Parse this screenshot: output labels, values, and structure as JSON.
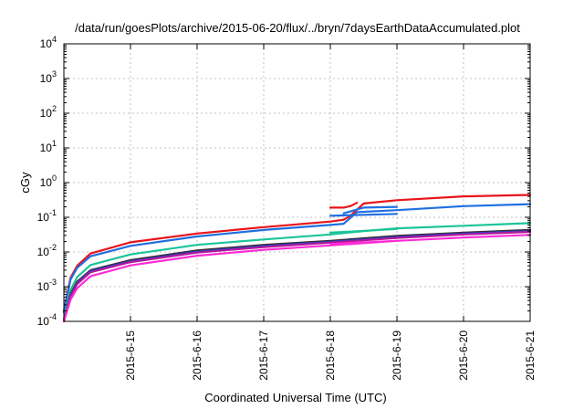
{
  "chart_data": {
    "type": "line",
    "title": "/data/run/goesPlots/archive/2015-06-20/flux/../bryn/7daysEarthDataAccumulated.plot",
    "xlabel": "Coordinated Universal Time (UTC)",
    "ylabel": "cGy",
    "yscale": "log",
    "ylim": [
      0.0001,
      10000
    ],
    "xlim": [
      "2015-06-14 00:00",
      "2015-06-21 00:00"
    ],
    "grid": true,
    "x_ticks": [
      "2015-6-15",
      "2015-6-16",
      "2015-6-17",
      "2015-6-18",
      "2015-6-19",
      "2015-6-20",
      "2015-6-21"
    ],
    "y_ticks": [
      {
        "value": 0.0001,
        "base": "10",
        "exp": "-4"
      },
      {
        "value": 0.001,
        "base": "10",
        "exp": "-3"
      },
      {
        "value": 0.01,
        "base": "10",
        "exp": "-2"
      },
      {
        "value": 0.1,
        "base": "10",
        "exp": "-1"
      },
      {
        "value": 1,
        "base": "10",
        "exp": "0"
      },
      {
        "value": 10,
        "base": "10",
        "exp": "1"
      },
      {
        "value": 100,
        "base": "10",
        "exp": "2"
      },
      {
        "value": 1000,
        "base": "10",
        "exp": "3"
      },
      {
        "value": 10000,
        "base": "10",
        "exp": "4"
      }
    ],
    "series": [
      {
        "color": "#e8141a",
        "points": [
          [
            "2015-06-14 00:00",
            0.0002
          ],
          [
            "2015-06-14 02:24",
            0.0018
          ],
          [
            "2015-06-14 04:48",
            0.004
          ],
          [
            "2015-06-14 09:36",
            0.009
          ],
          [
            "2015-06-15 00:00",
            0.019
          ],
          [
            "2015-06-16 00:00",
            0.034
          ],
          [
            "2015-06-17 00:00",
            0.052
          ],
          [
            "2015-06-18 00:00",
            0.075
          ],
          [
            "2015-06-18 04:48",
            0.085
          ],
          [
            "2015-06-18 07:12",
            0.11
          ],
          [
            "2015-06-18 12:00",
            0.25
          ],
          [
            "2015-06-19 00:00",
            0.31
          ],
          [
            "2015-06-20 00:00",
            0.4
          ],
          [
            "2015-06-21 00:00",
            0.44
          ]
        ]
      },
      {
        "color": "#e8141a",
        "points": [
          [
            "2015-06-18 00:00",
            0.19
          ],
          [
            "2015-06-18 04:48",
            0.19
          ],
          [
            "2015-06-18 07:12",
            0.21
          ],
          [
            "2015-06-18 09:36",
            0.26
          ]
        ]
      },
      {
        "color": "#1f6fe0",
        "points": [
          [
            "2015-06-14 00:00",
            0.00018
          ],
          [
            "2015-06-14 02:24",
            0.0016
          ],
          [
            "2015-06-14 04:48",
            0.0035
          ],
          [
            "2015-06-14 09:36",
            0.0075
          ],
          [
            "2015-06-15 00:00",
            0.015
          ],
          [
            "2015-06-16 00:00",
            0.028
          ],
          [
            "2015-06-17 00:00",
            0.043
          ],
          [
            "2015-06-18 00:00",
            0.06
          ],
          [
            "2015-06-18 04:48",
            0.065
          ],
          [
            "2015-06-18 09:36",
            0.14
          ],
          [
            "2015-06-19 00:00",
            0.16
          ],
          [
            "2015-06-20 00:00",
            0.21
          ],
          [
            "2015-06-21 00:00",
            0.24
          ]
        ]
      },
      {
        "color": "#1f6fe0",
        "points": [
          [
            "2015-06-18 00:00",
            0.11
          ],
          [
            "2015-06-18 07:12",
            0.115
          ],
          [
            "2015-06-19 00:00",
            0.125
          ]
        ]
      },
      {
        "color": "#1f6fe0",
        "points": [
          [
            "2015-06-18 04:48",
            0.13
          ],
          [
            "2015-06-18 12:00",
            0.19
          ],
          [
            "2015-06-19 00:00",
            0.2
          ]
        ]
      },
      {
        "color": "#1cc49a",
        "points": [
          [
            "2015-06-14 00:00",
            0.00012
          ],
          [
            "2015-06-14 02:24",
            0.0008
          ],
          [
            "2015-06-14 04:48",
            0.0019
          ],
          [
            "2015-06-14 09:36",
            0.0042
          ],
          [
            "2015-06-15 00:00",
            0.0085
          ],
          [
            "2015-06-16 00:00",
            0.016
          ],
          [
            "2015-06-17 00:00",
            0.023
          ],
          [
            "2015-06-18 00:00",
            0.032
          ],
          [
            "2015-06-18 12:00",
            0.04
          ],
          [
            "2015-06-19 00:00",
            0.048
          ],
          [
            "2015-06-20 00:00",
            0.057
          ],
          [
            "2015-06-21 00:00",
            0.068
          ]
        ]
      },
      {
        "color": "#1cc49a",
        "points": [
          [
            "2015-06-18 00:00",
            0.036
          ],
          [
            "2015-06-19 00:00",
            0.046
          ]
        ]
      },
      {
        "color": "#3a2a2a",
        "points": [
          [
            "2015-06-14 00:00",
            0.0001
          ],
          [
            "2015-06-14 02:24",
            0.0006
          ],
          [
            "2015-06-14 04:48",
            0.0014
          ],
          [
            "2015-06-14 09:36",
            0.003
          ],
          [
            "2015-06-15 00:00",
            0.0058
          ],
          [
            "2015-06-16 00:00",
            0.011
          ],
          [
            "2015-06-17 00:00",
            0.016
          ],
          [
            "2015-06-18 00:00",
            0.021
          ],
          [
            "2015-06-19 00:00",
            0.029
          ],
          [
            "2015-06-20 00:00",
            0.036
          ],
          [
            "2015-06-21 00:00",
            0.043
          ]
        ]
      },
      {
        "color": "#2a40c8",
        "points": [
          [
            "2015-06-14 00:00",
            0.0001
          ],
          [
            "2015-06-14 02:24",
            0.00055
          ],
          [
            "2015-06-14 04:48",
            0.0013
          ],
          [
            "2015-06-14 09:36",
            0.0028
          ],
          [
            "2015-06-15 00:00",
            0.0054
          ],
          [
            "2015-06-16 00:00",
            0.0102
          ],
          [
            "2015-06-17 00:00",
            0.0148
          ],
          [
            "2015-06-18 00:00",
            0.0195
          ],
          [
            "2015-06-19 00:00",
            0.027
          ],
          [
            "2015-06-20 00:00",
            0.034
          ],
          [
            "2015-06-21 00:00",
            0.04
          ]
        ]
      },
      {
        "color": "#b2189a",
        "points": [
          [
            "2015-06-14 00:00",
            0.0001
          ],
          [
            "2015-06-14 02:24",
            0.0005
          ],
          [
            "2015-06-14 04:48",
            0.0012
          ],
          [
            "2015-06-14 09:36",
            0.0026
          ],
          [
            "2015-06-15 00:00",
            0.0051
          ],
          [
            "2015-06-16 00:00",
            0.0096
          ],
          [
            "2015-06-17 00:00",
            0.0139
          ],
          [
            "2015-06-18 00:00",
            0.0185
          ],
          [
            "2015-06-19 00:00",
            0.0255
          ],
          [
            "2015-06-20 00:00",
            0.032
          ],
          [
            "2015-06-21 00:00",
            0.038
          ]
        ]
      },
      {
        "color": "#ff2bd6",
        "points": [
          [
            "2015-06-14 00:00",
            0.0001
          ],
          [
            "2015-06-14 02:24",
            0.00042
          ],
          [
            "2015-06-14 04:48",
            0.0009
          ],
          [
            "2015-06-14 09:36",
            0.002
          ],
          [
            "2015-06-15 00:00",
            0.0041
          ],
          [
            "2015-06-16 00:00",
            0.0078
          ],
          [
            "2015-06-17 00:00",
            0.0115
          ],
          [
            "2015-06-18 00:00",
            0.0155
          ],
          [
            "2015-06-19 00:00",
            0.021
          ],
          [
            "2015-06-20 00:00",
            0.026
          ],
          [
            "2015-06-21 00:00",
            0.031
          ]
        ]
      },
      {
        "color": "#ff2bd6",
        "points": [
          [
            "2015-06-18 00:00",
            0.017
          ],
          [
            "2015-06-19 00:00",
            0.021
          ]
        ]
      }
    ]
  }
}
